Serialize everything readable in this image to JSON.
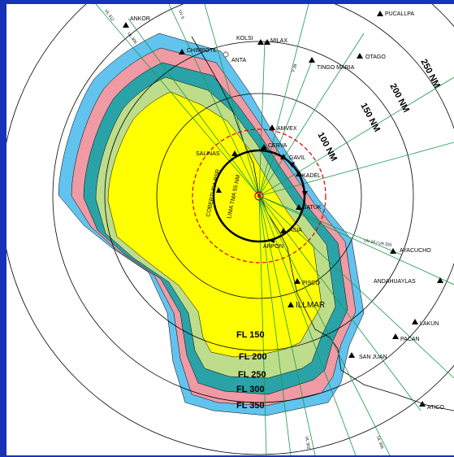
{
  "waypoints": {
    "ancor": "ANKOR",
    "pucallpa": "PUCALLPA",
    "kolsi": "KOLSI",
    "milax": "MILAX",
    "chimbote": "CHIMBOTE",
    "anta": "ANTA",
    "tingo_maria": "TINGO MARIA",
    "otago": "OTAGO",
    "amvex": "AMVEX",
    "cerva": "CERVA",
    "salinas": "SALINAS",
    "gavil": "GAVIL",
    "kadel": "KADEL",
    "gatuk": "GATUK",
    "asia": "ASIA",
    "arpon": "ARPON",
    "ayacucho": "AYACUCHO",
    "andahuaylas": "ANDAHUAYLAS",
    "pisco": "PISCO",
    "illmar": "ILLMAR",
    "lakun": "LAKUN",
    "pacan": "PACAN",
    "san_juan": "SAN JUAN",
    "atico": "ATICO"
  },
  "range_rings": {
    "r100": "100 NM",
    "r150": "150 NM",
    "r200": "200 NM",
    "r250": "250 NM"
  },
  "labels": {
    "tma": "LIMA TMA 55 NM",
    "coverage": "COBERTURA PSR"
  },
  "flight_levels": {
    "fl150": "FL 150",
    "fl200": "FL 200",
    "fl250": "FL 250",
    "fl300": "FL 300",
    "fl350": "FL 350"
  },
  "routes": {
    "ul312": "UL 312",
    "ul306": "UL 306",
    "uv5": "UV 5",
    "v28": "V 28",
    "uv10": "UV 10 / UA 320",
    "ul305": "UL 305",
    "ul302": "UL 302"
  },
  "colors": {
    "fl150": "#ffff00",
    "fl200": "#bedd8a",
    "fl250": "#2aa3a8",
    "fl300": "#ef9aa4",
    "fl350": "#62c3ee",
    "tma_circle": "#000000",
    "psr_circle": "#d40000",
    "frame": "#1633b8"
  }
}
